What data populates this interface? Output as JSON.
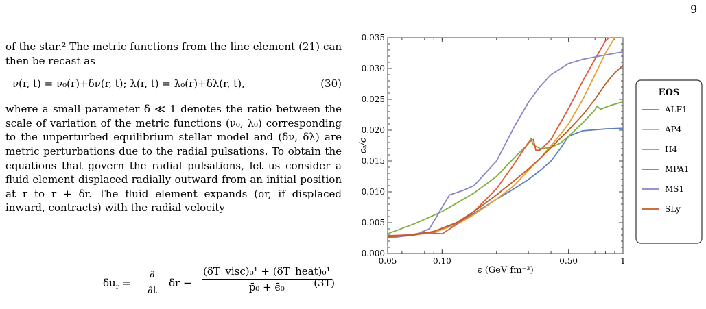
{
  "page": {
    "number": "9"
  },
  "text": {
    "para1": "of the star.² The metric functions from the line element (21) can then be recast as",
    "eq30": "ν(r, t) = ν₀(r)+δν(r, t);   λ(r, t) = λ₀(r)+δλ(r, t),",
    "eq30_num": "(30)",
    "para2": "where a small parameter δ ≪ 1 denotes the ratio between the scale of variation of the metric functions (ν₀, λ₀) corresponding to the unperturbed equilibrium stellar model and (δν, δλ) are metric perturbations due to the radial pulsations. To obtain the equations that govern the radial pulsations, let us consider a fluid element displaced radially outward from an initial position at r to r + δr. The fluid element expands (or, if displaced inward, contracts) with the radial velocity",
    "eq31_lhs": "δu",
    "eq31_lhs_sub": "r",
    "eq31_eq": " = ",
    "eq31_d_num": "∂",
    "eq31_d_den": "∂t",
    "eq31_mid": "δr −",
    "eq31_num": "(δT_visc)₀¹ + (δT_heat)₀¹",
    "eq31_den": "p̄₀ + ϵ̄₀",
    "eq31_num_label": "(31)"
  },
  "chart_data": {
    "type": "line",
    "xlabel": "ϵ (GeV fm⁻³)",
    "ylabel": "cₛ/c",
    "xscale": "log",
    "xlim": [
      0.05,
      1
    ],
    "ylim": [
      0.0,
      0.035
    ],
    "x_ticks": [
      "0.05",
      "0.10",
      "0.50",
      "1"
    ],
    "y_ticks": [
      "0.000",
      "0.005",
      "0.010",
      "0.015",
      "0.020",
      "0.025",
      "0.030",
      "0.035"
    ],
    "legend_title": "EOS",
    "legend_position": "right",
    "grid": false,
    "series": [
      {
        "name": "ALF1",
        "color": "#5b7fbd",
        "points": [
          [
            0.05,
            0.0028
          ],
          [
            0.07,
            0.0031
          ],
          [
            0.09,
            0.0035
          ],
          [
            0.12,
            0.0048
          ],
          [
            0.15,
            0.0065
          ],
          [
            0.2,
            0.0088
          ],
          [
            0.25,
            0.0105
          ],
          [
            0.3,
            0.012
          ],
          [
            0.35,
            0.0135
          ],
          [
            0.4,
            0.015
          ],
          [
            0.45,
            0.017
          ],
          [
            0.5,
            0.019
          ],
          [
            0.55,
            0.0195
          ],
          [
            0.6,
            0.0199
          ],
          [
            0.8,
            0.0202
          ],
          [
            1.0,
            0.0203
          ]
        ]
      },
      {
        "name": "AP4",
        "color": "#e8a033",
        "points": [
          [
            0.05,
            0.0025
          ],
          [
            0.07,
            0.003
          ],
          [
            0.09,
            0.0034
          ],
          [
            0.12,
            0.0047
          ],
          [
            0.15,
            0.0063
          ],
          [
            0.2,
            0.0088
          ],
          [
            0.25,
            0.011
          ],
          [
            0.3,
            0.0135
          ],
          [
            0.35,
            0.0155
          ],
          [
            0.4,
            0.0175
          ],
          [
            0.45,
            0.0193
          ],
          [
            0.5,
            0.021
          ],
          [
            0.6,
            0.025
          ],
          [
            0.7,
            0.029
          ],
          [
            0.8,
            0.0325
          ],
          [
            0.9,
            0.035
          ]
        ]
      },
      {
        "name": "H4",
        "color": "#7fb03a",
        "points": [
          [
            0.05,
            0.0032
          ],
          [
            0.07,
            0.0048
          ],
          [
            0.1,
            0.0068
          ],
          [
            0.15,
            0.0098
          ],
          [
            0.2,
            0.0125
          ],
          [
            0.25,
            0.0155
          ],
          [
            0.3,
            0.0178
          ],
          [
            0.31,
            0.0187
          ],
          [
            0.32,
            0.0176
          ],
          [
            0.35,
            0.017
          ],
          [
            0.4,
            0.0172
          ],
          [
            0.45,
            0.0179
          ],
          [
            0.5,
            0.019
          ],
          [
            0.6,
            0.0212
          ],
          [
            0.7,
            0.0233
          ],
          [
            0.72,
            0.0239
          ],
          [
            0.75,
            0.0234
          ],
          [
            0.85,
            0.024
          ],
          [
            1.0,
            0.0246
          ]
        ]
      },
      {
        "name": "MPA1",
        "color": "#e0583a",
        "points": [
          [
            0.05,
            0.0029
          ],
          [
            0.065,
            0.003
          ],
          [
            0.08,
            0.0034
          ],
          [
            0.09,
            0.0033
          ],
          [
            0.1,
            0.0032
          ],
          [
            0.12,
            0.0047
          ],
          [
            0.15,
            0.0068
          ],
          [
            0.2,
            0.0105
          ],
          [
            0.25,
            0.0145
          ],
          [
            0.3,
            0.018
          ],
          [
            0.32,
            0.0185
          ],
          [
            0.33,
            0.0167
          ],
          [
            0.35,
            0.0168
          ],
          [
            0.4,
            0.0185
          ],
          [
            0.5,
            0.0235
          ],
          [
            0.6,
            0.028
          ],
          [
            0.7,
            0.0315
          ],
          [
            0.8,
            0.0345
          ],
          [
            0.85,
            0.0352
          ]
        ]
      },
      {
        "name": "MS1",
        "color": "#8a86c4",
        "points": [
          [
            0.05,
            0.0025
          ],
          [
            0.07,
            0.003
          ],
          [
            0.085,
            0.004
          ],
          [
            0.1,
            0.0075
          ],
          [
            0.11,
            0.0095
          ],
          [
            0.13,
            0.0102
          ],
          [
            0.15,
            0.011
          ],
          [
            0.2,
            0.015
          ],
          [
            0.25,
            0.0205
          ],
          [
            0.3,
            0.0245
          ],
          [
            0.35,
            0.0272
          ],
          [
            0.4,
            0.029
          ],
          [
            0.5,
            0.0308
          ],
          [
            0.6,
            0.0315
          ],
          [
            0.8,
            0.0322
          ],
          [
            1.0,
            0.0327
          ]
        ]
      },
      {
        "name": "SLy",
        "color": "#c05c28",
        "points": [
          [
            0.05,
            0.0027
          ],
          [
            0.07,
            0.003
          ],
          [
            0.09,
            0.0036
          ],
          [
            0.12,
            0.005
          ],
          [
            0.15,
            0.0068
          ],
          [
            0.2,
            0.0095
          ],
          [
            0.25,
            0.0118
          ],
          [
            0.3,
            0.0137
          ],
          [
            0.35,
            0.0155
          ],
          [
            0.4,
            0.0172
          ],
          [
            0.5,
            0.02
          ],
          [
            0.6,
            0.0225
          ],
          [
            0.7,
            0.025
          ],
          [
            0.8,
            0.0275
          ],
          [
            0.9,
            0.0293
          ],
          [
            1.0,
            0.0305
          ]
        ]
      }
    ]
  }
}
